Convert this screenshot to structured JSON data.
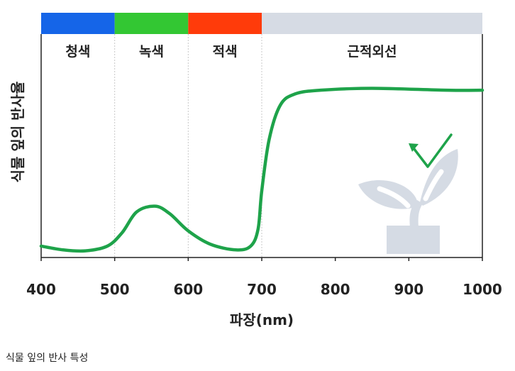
{
  "caption": "식물 잎의 반사 특성",
  "chart_data": {
    "type": "line",
    "xlabel": "파장(nm)",
    "ylabel": "식물 잎의 반사율",
    "xlim": [
      400,
      1000
    ],
    "x_ticks": [
      "400",
      "500",
      "600",
      "700",
      "800",
      "900",
      "1000"
    ],
    "grid": "vertical dashed lines at 500, 600, 700",
    "bands": [
      {
        "label": "청색",
        "from": 400,
        "to": 500,
        "color": "#1565e8"
      },
      {
        "label": "녹색",
        "from": 500,
        "to": 600,
        "color": "#33c733"
      },
      {
        "label": "적색",
        "from": 600,
        "to": 700,
        "color": "#ff3b0a"
      },
      {
        "label": "근적외선",
        "from": 700,
        "to": 1000,
        "color": "#d6dbe4"
      }
    ],
    "series": [
      {
        "color": "#1ea34a",
        "x": [
          400,
          430,
          460,
          490,
          510,
          530,
          555,
          575,
          600,
          630,
          665,
          685,
          695,
          700,
          710,
          725,
          745,
          780,
          850,
          950,
          1000
        ],
        "y": [
          0.06,
          0.04,
          0.035,
          0.06,
          0.13,
          0.24,
          0.27,
          0.23,
          0.14,
          0.07,
          0.04,
          0.06,
          0.15,
          0.35,
          0.62,
          0.8,
          0.86,
          0.88,
          0.89,
          0.88,
          0.88
        ]
      }
    ],
    "ylim": [
      0,
      1
    ]
  },
  "icon": "plant-icon"
}
